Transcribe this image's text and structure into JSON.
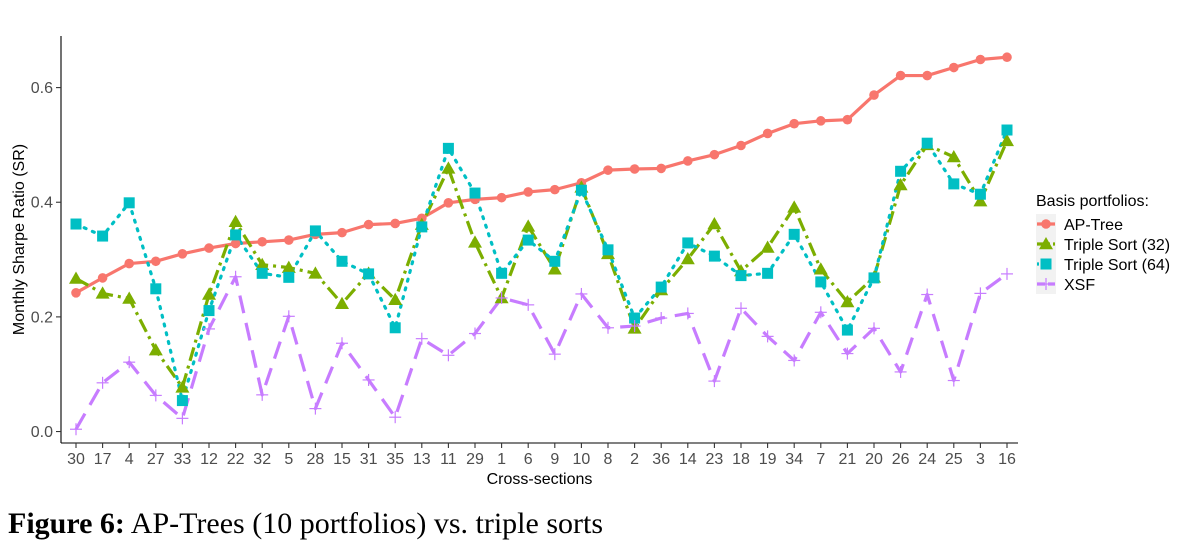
{
  "chart_data": {
    "type": "line",
    "xlabel": "Cross-sections",
    "ylabel": "Monthly Sharpe Ratio (SR)",
    "ylim": [
      -0.02,
      0.69
    ],
    "yticks": [
      0.0,
      0.2,
      0.4,
      0.6
    ],
    "ytick_labels": [
      "0.0",
      "0.2",
      "0.4",
      "0.6"
    ],
    "grid": false,
    "legend_title": "Basis portfolios:",
    "legend_position": "right",
    "categories": [
      "30",
      "17",
      "4",
      "27",
      "33",
      "12",
      "22",
      "32",
      "5",
      "28",
      "15",
      "31",
      "35",
      "13",
      "11",
      "29",
      "1",
      "6",
      "9",
      "10",
      "8",
      "2",
      "36",
      "14",
      "23",
      "18",
      "19",
      "34",
      "7",
      "21",
      "20",
      "26",
      "24",
      "25",
      "3",
      "16"
    ],
    "series": [
      {
        "name": "AP-Tree",
        "color": "#F8766D",
        "marker": "circle",
        "line": "solid",
        "values": [
          0.242,
          0.268,
          0.293,
          0.297,
          0.31,
          0.32,
          0.328,
          0.331,
          0.334,
          0.344,
          0.347,
          0.361,
          0.363,
          0.372,
          0.399,
          0.405,
          0.408,
          0.418,
          0.422,
          0.434,
          0.456,
          0.458,
          0.459,
          0.472,
          0.483,
          0.499,
          0.52,
          0.537,
          0.542,
          0.544,
          0.587,
          0.621,
          0.621,
          0.635,
          0.649,
          0.653
        ]
      },
      {
        "name": "Triple Sort (32)",
        "color": "#7CAE00",
        "marker": "triangle",
        "line": "dashdot",
        "values": [
          0.267,
          0.241,
          0.232,
          0.142,
          0.077,
          0.239,
          0.366,
          0.291,
          0.286,
          0.276,
          0.223,
          0.276,
          0.23,
          0.361,
          0.459,
          0.33,
          0.233,
          0.358,
          0.283,
          0.426,
          0.31,
          0.18,
          0.247,
          0.301,
          0.362,
          0.28,
          0.321,
          0.391,
          0.283,
          0.226,
          0.269,
          0.43,
          0.5,
          0.479,
          0.402,
          0.507
        ]
      },
      {
        "name": "Triple Sort (64)",
        "color": "#00BFC4",
        "marker": "square",
        "line": "dotted",
        "values": [
          0.362,
          0.341,
          0.399,
          0.249,
          0.054,
          0.211,
          0.343,
          0.276,
          0.269,
          0.35,
          0.297,
          0.275,
          0.181,
          0.357,
          0.494,
          0.416,
          0.276,
          0.334,
          0.297,
          0.421,
          0.317,
          0.198,
          0.252,
          0.329,
          0.306,
          0.272,
          0.276,
          0.344,
          0.261,
          0.177,
          0.268,
          0.454,
          0.503,
          0.432,
          0.414,
          0.526
        ]
      },
      {
        "name": "XSF",
        "color": "#C77CFF",
        "marker": "plus",
        "line": "longdash",
        "values": [
          0.004,
          0.085,
          0.121,
          0.063,
          0.023,
          0.179,
          0.27,
          0.064,
          0.201,
          0.04,
          0.154,
          0.09,
          0.025,
          0.162,
          0.133,
          0.171,
          0.233,
          0.221,
          0.135,
          0.24,
          0.181,
          0.184,
          0.198,
          0.206,
          0.088,
          0.215,
          0.166,
          0.124,
          0.208,
          0.136,
          0.18,
          0.104,
          0.239,
          0.089,
          0.241,
          0.275
        ]
      }
    ]
  },
  "caption": {
    "label": "Figure 6:",
    "text": "AP-Trees (10 portfolios) vs. triple sorts"
  }
}
